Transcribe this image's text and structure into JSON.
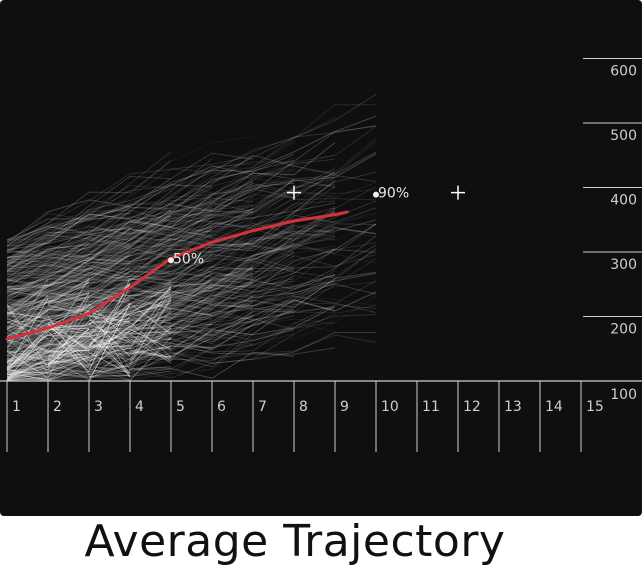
{
  "title": "Average Trajectory",
  "colors": {
    "background": "#0f0f0f",
    "trajectory_lines": "#ffffff",
    "average_line": "#d2323c",
    "axis": "#cfcfcf"
  },
  "chart_data": {
    "type": "line",
    "title": "Average Trajectory",
    "xlabel": "",
    "ylabel": "",
    "x_ticks": [
      "1",
      "2",
      "3",
      "4",
      "5",
      "6",
      "7",
      "8",
      "9",
      "10",
      "11",
      "12",
      "13",
      "14",
      "15"
    ],
    "y_ticks": [
      "100",
      "200",
      "300",
      "400",
      "500",
      "600"
    ],
    "xlim": [
      1,
      15
    ],
    "ylim": [
      100,
      600
    ],
    "y_axis_position": "right",
    "grid": false,
    "series": [
      {
        "role": "average",
        "x": [
          1,
          2,
          3,
          4,
          5,
          6,
          7,
          8,
          9,
          9.3
        ],
        "y": [
          165,
          182,
          205,
          245,
          290,
          315,
          333,
          348,
          358,
          362
        ]
      }
    ],
    "background_trajectories": "many faint individual trajectories starting between 100 and 300 at x=1 and rising toward 300–500, most ending by x=8–10",
    "annotations": [
      {
        "label": "50%",
        "x": 5,
        "y": 287,
        "marker": "dot"
      },
      {
        "label": "90%",
        "x": 10,
        "y": 389,
        "marker": "dot"
      },
      {
        "label": "",
        "x": 8,
        "y": 392,
        "marker": "plus"
      },
      {
        "label": "",
        "x": 12,
        "y": 392,
        "marker": "plus"
      }
    ]
  }
}
